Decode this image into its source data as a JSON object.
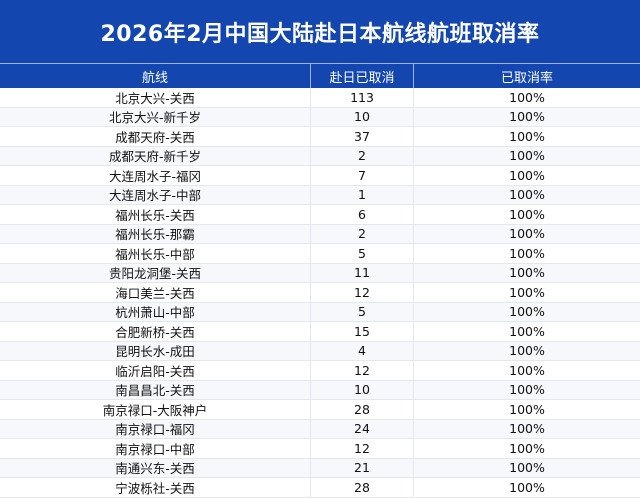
{
  "title": "2026年2月中国大陆赴日本航线航班取消率",
  "colors": {
    "header_bg": "#1346ae",
    "header_text": "#ffffff"
  },
  "table": {
    "headers": [
      "航线",
      "赴日已取消",
      "已取消率"
    ],
    "rows": [
      [
        "北京大兴-关西",
        "113",
        "100%"
      ],
      [
        "北京大兴-新千岁",
        "10",
        "100%"
      ],
      [
        "成都天府-关西",
        "37",
        "100%"
      ],
      [
        "成都天府-新千岁",
        "2",
        "100%"
      ],
      [
        "大连周水子-福冈",
        "7",
        "100%"
      ],
      [
        "大连周水子-中部",
        "1",
        "100%"
      ],
      [
        "福州长乐-关西",
        "6",
        "100%"
      ],
      [
        "福州长乐-那霸",
        "2",
        "100%"
      ],
      [
        "福州长乐-中部",
        "5",
        "100%"
      ],
      [
        "贵阳龙洞堡-关西",
        "11",
        "100%"
      ],
      [
        "海口美兰-关西",
        "12",
        "100%"
      ],
      [
        "杭州萧山-中部",
        "5",
        "100%"
      ],
      [
        "合肥新桥-关西",
        "15",
        "100%"
      ],
      [
        "昆明长水-成田",
        "4",
        "100%"
      ],
      [
        "临沂启阳-关西",
        "12",
        "100%"
      ],
      [
        "南昌昌北-关西",
        "10",
        "100%"
      ],
      [
        "南京禄口-大阪神户",
        "28",
        "100%"
      ],
      [
        "南京禄口-福冈",
        "24",
        "100%"
      ],
      [
        "南京禄口-中部",
        "12",
        "100%"
      ],
      [
        "南通兴东-关西",
        "21",
        "100%"
      ],
      [
        "宁波栎社-关西",
        "28",
        "100%"
      ]
    ]
  }
}
